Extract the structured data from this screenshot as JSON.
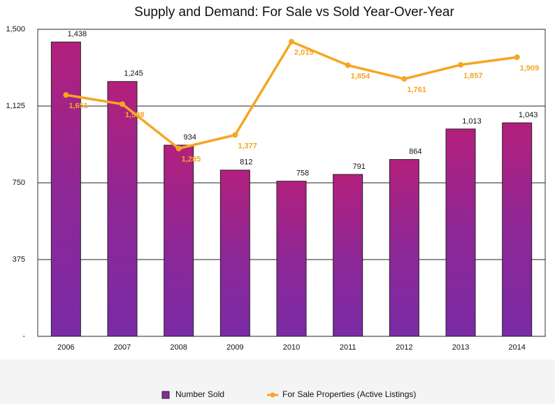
{
  "chart_data": {
    "type": "bar",
    "title": "Supply and Demand: For Sale vs Sold Year-Over-Year",
    "categories": [
      "2006",
      "2007",
      "2008",
      "2009",
      "2010",
      "2011",
      "2012",
      "2013",
      "2014"
    ],
    "series": [
      {
        "name": "Number Sold",
        "type": "bar",
        "color": "#8a2a9e",
        "values": [
          1438,
          1245,
          934,
          812,
          758,
          791,
          864,
          1013,
          1043
        ],
        "value_labels": [
          "1,438",
          "1,245",
          "934",
          "812",
          "758",
          "791",
          "864",
          "1,013",
          "1,043"
        ]
      },
      {
        "name": "For Sale Properties (Active Listings)",
        "type": "line",
        "axis": "y2",
        "color": "#f5a623",
        "values": [
          1651,
          1588,
          1285,
          1377,
          2015,
          1854,
          1761,
          1857,
          1909
        ],
        "value_labels": [
          "1,651",
          "1,588",
          "1,285",
          "1,377",
          "2,015",
          "1,854",
          "1,761",
          "1,857",
          "1,909"
        ]
      }
    ],
    "ylim": [
      0,
      1500
    ],
    "yticks": [
      {
        "value": 0,
        "label": "-"
      },
      375,
      750,
      {
        "value": 1125,
        "label": "1,125"
      },
      {
        "value": 1500,
        "label": "1,500"
      }
    ],
    "y2lim": [
      0,
      2100
    ],
    "grid": true,
    "legend": "bottom"
  }
}
